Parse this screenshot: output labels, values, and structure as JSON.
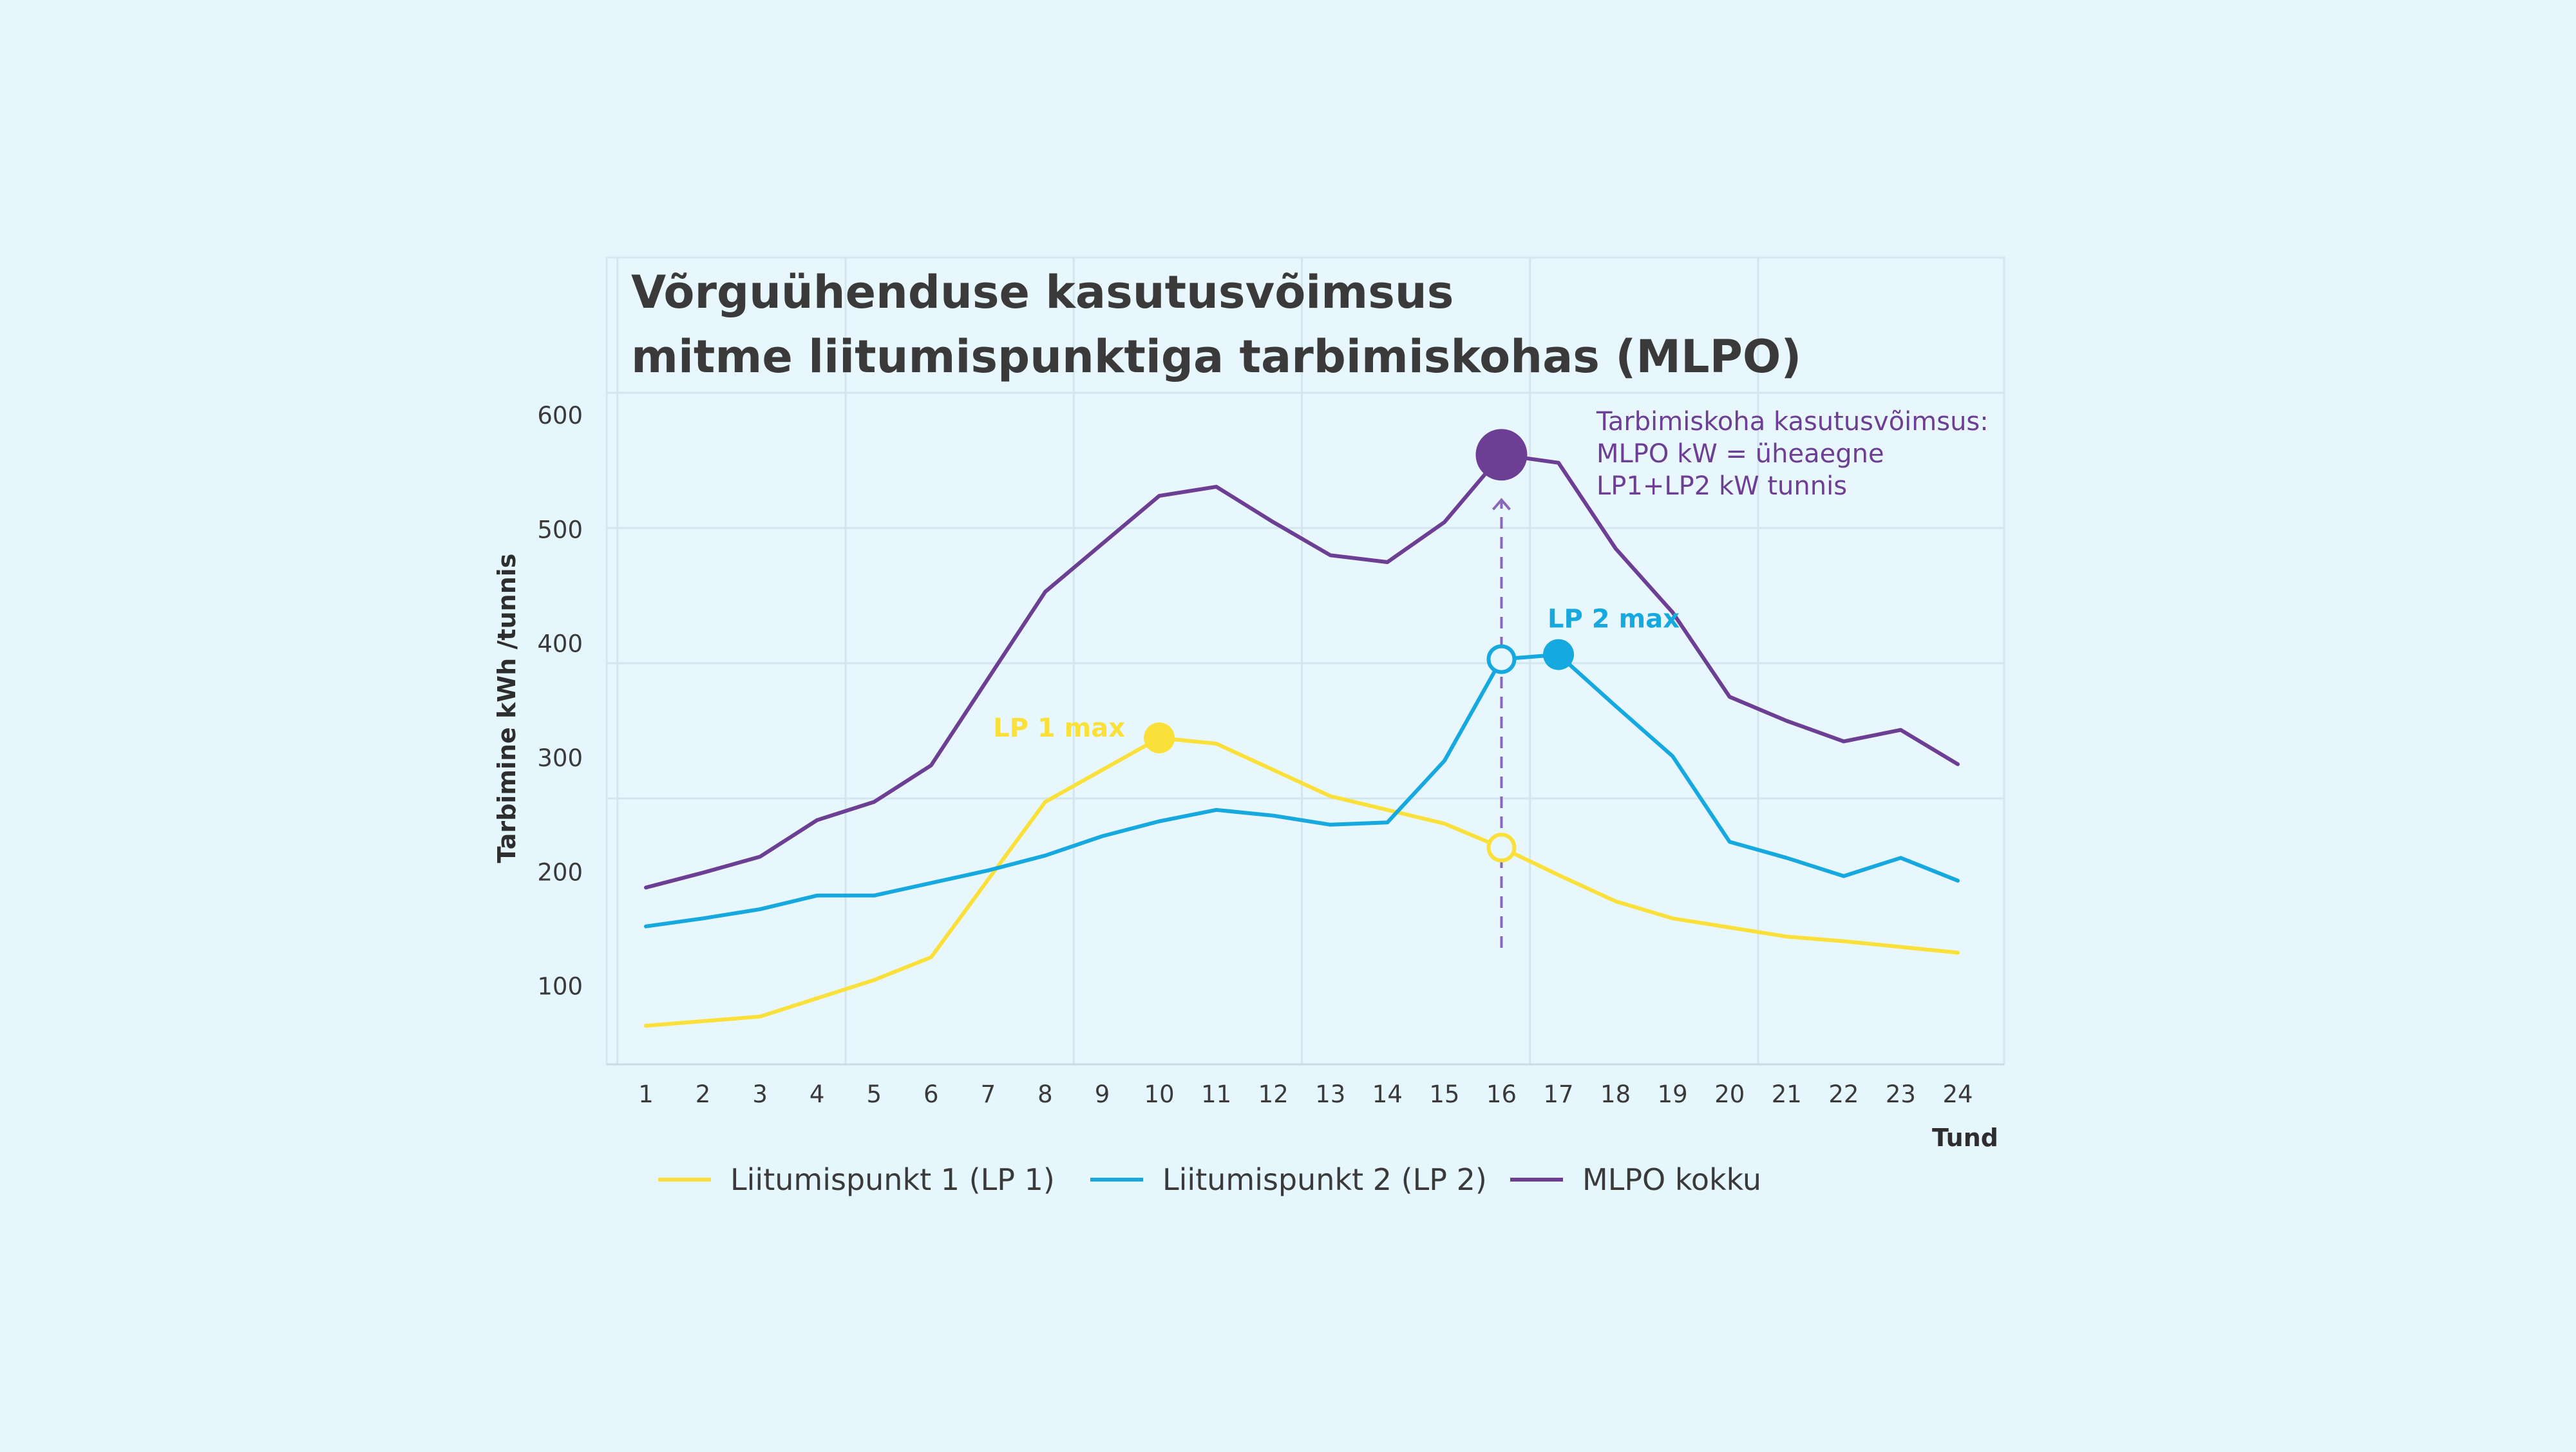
{
  "chart_data": {
    "type": "line",
    "title_lines": [
      "Võrguühenduse kasutusvõimsus",
      "mitme liitumispunktiga tarbimiskohas (MLPO)"
    ],
    "xlabel": "Tund",
    "ylabel": "Tarbimine kWh /tunnis",
    "x": [
      1,
      2,
      3,
      4,
      5,
      6,
      7,
      8,
      9,
      10,
      11,
      12,
      13,
      14,
      15,
      16,
      17,
      18,
      19,
      20,
      21,
      22,
      23,
      24
    ],
    "y_ticks": [
      100,
      200,
      300,
      400,
      500,
      600
    ],
    "ylim": [
      20,
      615
    ],
    "grid": true,
    "series": [
      {
        "name": "Liitumispunkt 1 (LP 1)",
        "color": "#fce03a",
        "values": [
          66,
          70,
          74,
          90,
          106,
          126,
          194,
          262,
          290,
          318,
          313,
          290,
          267,
          255,
          243,
          222,
          198,
          175,
          160,
          152,
          144,
          140,
          135,
          130
        ]
      },
      {
        "name": "Liitumispunkt 2 (LP 2)",
        "color": "#16a9e0",
        "values": [
          153,
          160,
          168,
          180,
          180,
          191,
          202,
          215,
          232,
          245,
          255,
          250,
          242,
          244,
          298,
          387,
          391,
          346,
          302,
          227,
          213,
          197,
          213,
          193
        ]
      },
      {
        "name": "MLPO kokku",
        "color": "#6c3e94",
        "values": [
          187,
          200,
          214,
          246,
          262,
          294,
          370,
          446,
          488,
          530,
          538,
          507,
          478,
          472,
          507,
          566,
          559,
          484,
          428,
          354,
          333,
          315,
          325,
          295
        ]
      }
    ],
    "legend_position": "bottom",
    "annotations": {
      "lp1_max": {
        "text": "LP 1 max",
        "x": 10,
        "y": 318,
        "color": "#fce03a"
      },
      "lp2_max": {
        "text": "LP 2 max",
        "x": 17,
        "y": 391,
        "color": "#16a9e0"
      },
      "mlpo_peak": {
        "x": 16,
        "y": 566,
        "color": "#6c3e94",
        "lines": [
          "Tarbimiskoha kasutusvõimsus:",
          "MLPO kW = üheaegne",
          "LP1+LP2 kW tunnis"
        ]
      },
      "hour16_lp1": {
        "x": 16,
        "y": 222
      },
      "hour16_lp2": {
        "x": 16,
        "y": 387
      }
    }
  }
}
